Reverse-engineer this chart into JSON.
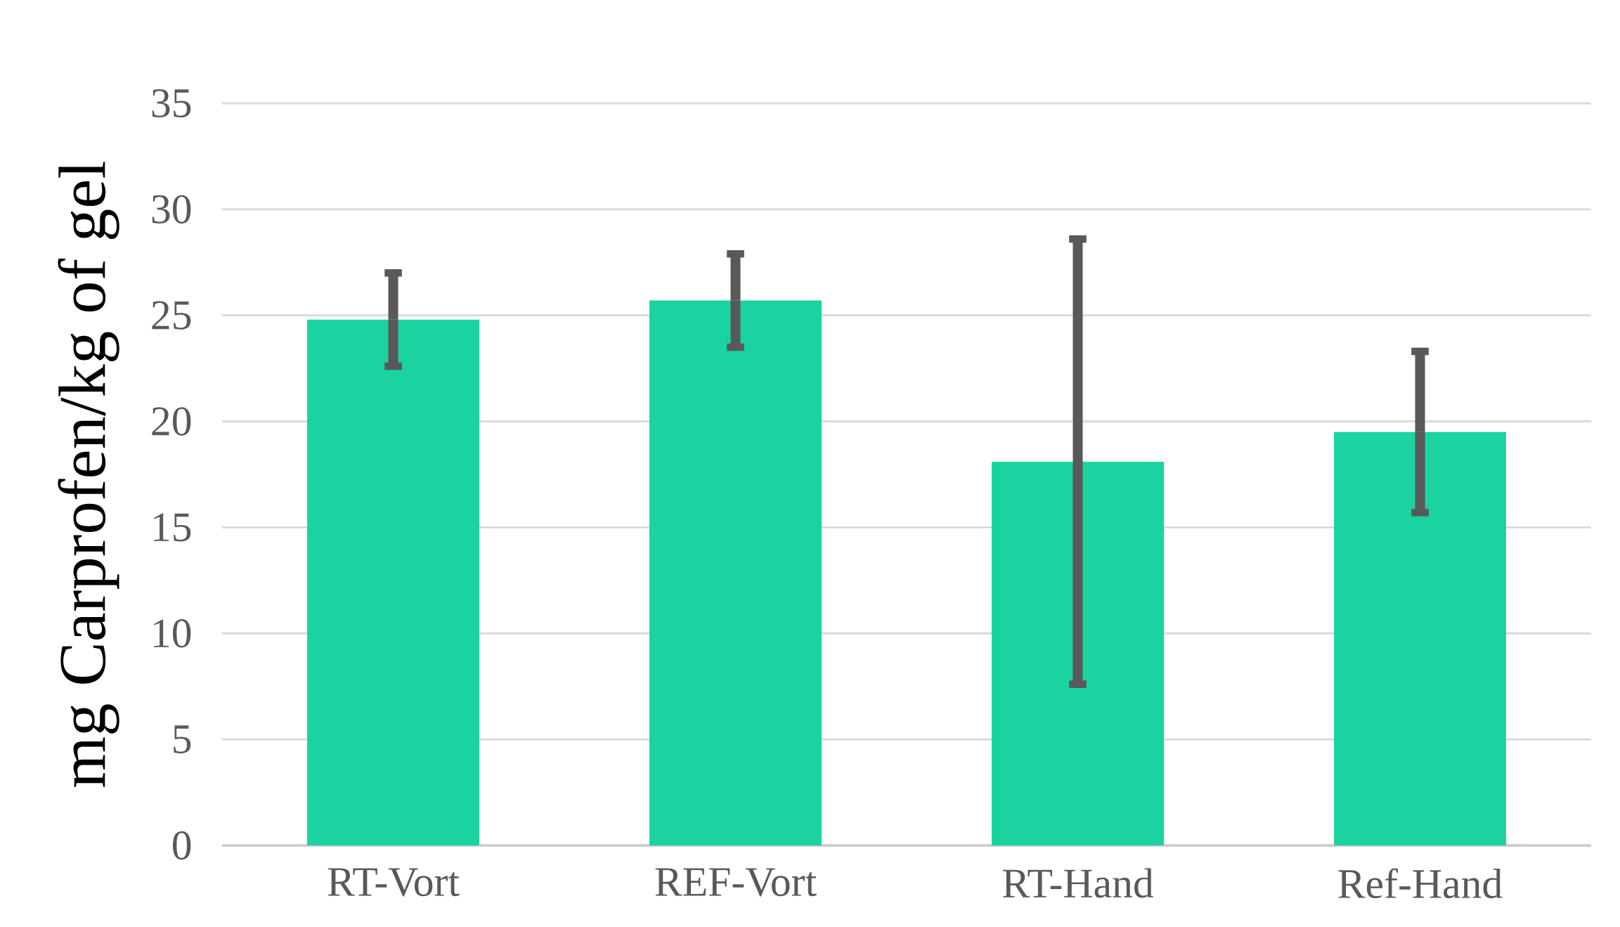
{
  "chart_data": {
    "type": "bar",
    "ylabel": "mg Carprofen/kg of gel",
    "categories": [
      "RT-Vort",
      "REF-Vort",
      "RT-Hand",
      "Ref-Hand"
    ],
    "values": [
      24.8,
      25.7,
      18.1,
      19.5
    ],
    "errors": [
      2.2,
      2.2,
      10.5,
      3.8
    ],
    "color": "#1ad3a0",
    "ylim": [
      0,
      35
    ],
    "yticks": [
      0,
      5,
      10,
      15,
      20,
      25,
      30,
      35
    ],
    "grid": "y"
  }
}
